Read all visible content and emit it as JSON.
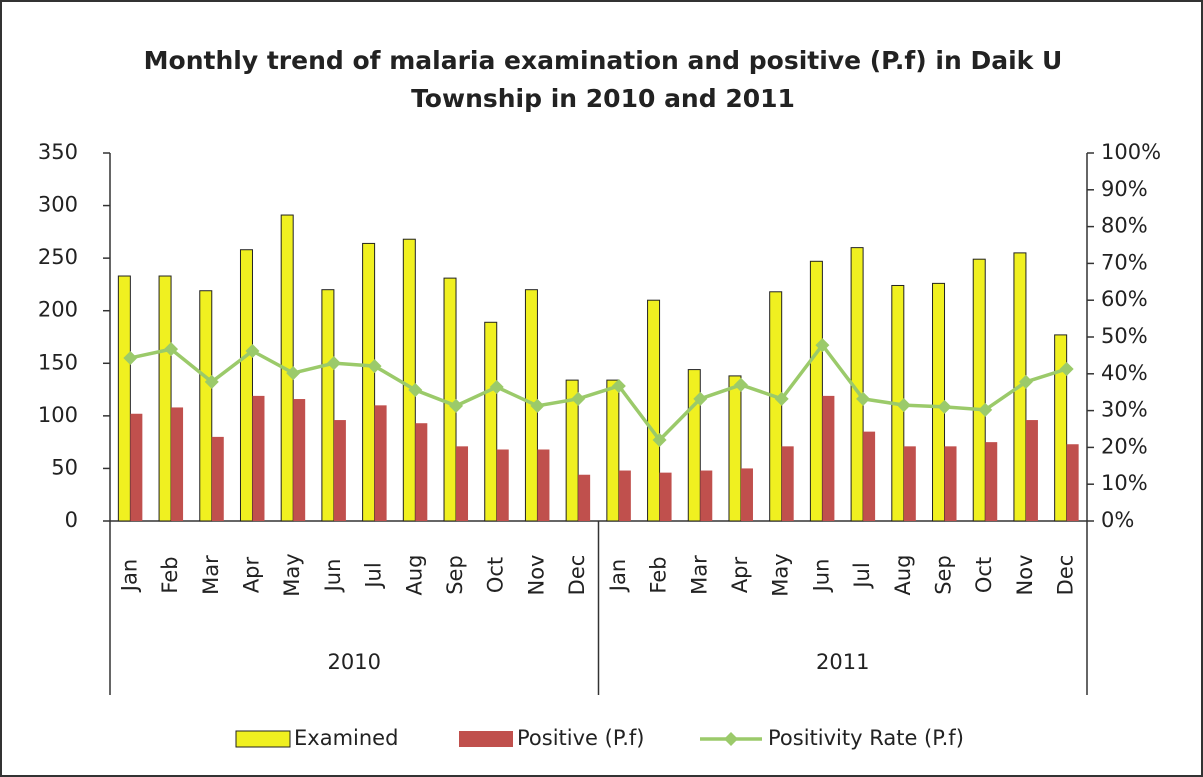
{
  "chart_data": {
    "type": "bar_line",
    "title": [
      "Monthly trend of malaria examination and positive (P.f) in Daik U",
      "Township in 2010 and 2011"
    ],
    "categories": [
      "Jan",
      "Feb",
      "Mar",
      "Apr",
      "May",
      "Jun",
      "Jul",
      "Aug",
      "Sep",
      "Oct",
      "Nov",
      "Dec",
      "Jan",
      "Feb",
      "Mar",
      "Apr",
      "May",
      "Jun",
      "Jul",
      "Aug",
      "Sep",
      "Oct",
      "Nov",
      "Dec"
    ],
    "groups": [
      "2010",
      "2011"
    ],
    "series": [
      {
        "name": "Examined",
        "type": "bar",
        "color": "#f0f020",
        "values": [
          233,
          233,
          219,
          258,
          291,
          220,
          264,
          268,
          231,
          189,
          220,
          134,
          134,
          210,
          144,
          138,
          218,
          247,
          260,
          224,
          226,
          249,
          255,
          177
        ]
      },
      {
        "name": "Positive (P.f)",
        "type": "bar",
        "color": "#c0504d",
        "values": [
          102,
          108,
          80,
          119,
          116,
          96,
          110,
          93,
          71,
          68,
          68,
          44,
          48,
          46,
          48,
          50,
          71,
          119,
          85,
          71,
          71,
          75,
          96,
          73
        ]
      },
      {
        "name": "Positivity Rate (P.f)",
        "type": "line",
        "axis": "y2",
        "color": "#9bca6a",
        "values": [
          44.3,
          46.7,
          37.8,
          46.2,
          40.2,
          42.9,
          42.1,
          35.6,
          31.3,
          36.4,
          31.3,
          33.2,
          36.7,
          22.0,
          33.2,
          37.0,
          33.2,
          47.8,
          33.2,
          31.5,
          31.0,
          30.2,
          37.8,
          41.3
        ]
      }
    ],
    "ylim": [
      0,
      350
    ],
    "yticks": [
      0,
      50,
      100,
      150,
      200,
      250,
      300,
      350
    ],
    "y2lim": [
      0,
      100
    ],
    "y2ticks": [
      {
        "value": 0,
        "label": "0%"
      },
      {
        "value": 10,
        "label": "10%"
      },
      {
        "value": 20,
        "label": "20%"
      },
      {
        "value": 30,
        "label": "30%"
      },
      {
        "value": 40,
        "label": "40%"
      },
      {
        "value": 50,
        "label": "50%"
      },
      {
        "value": 60,
        "label": "60%"
      },
      {
        "value": 70,
        "label": "70%"
      },
      {
        "value": 80,
        "label": "80%"
      },
      {
        "value": 90,
        "label": "90%"
      },
      {
        "value": 100,
        "label": "100%"
      }
    ],
    "legend": "bottom"
  }
}
